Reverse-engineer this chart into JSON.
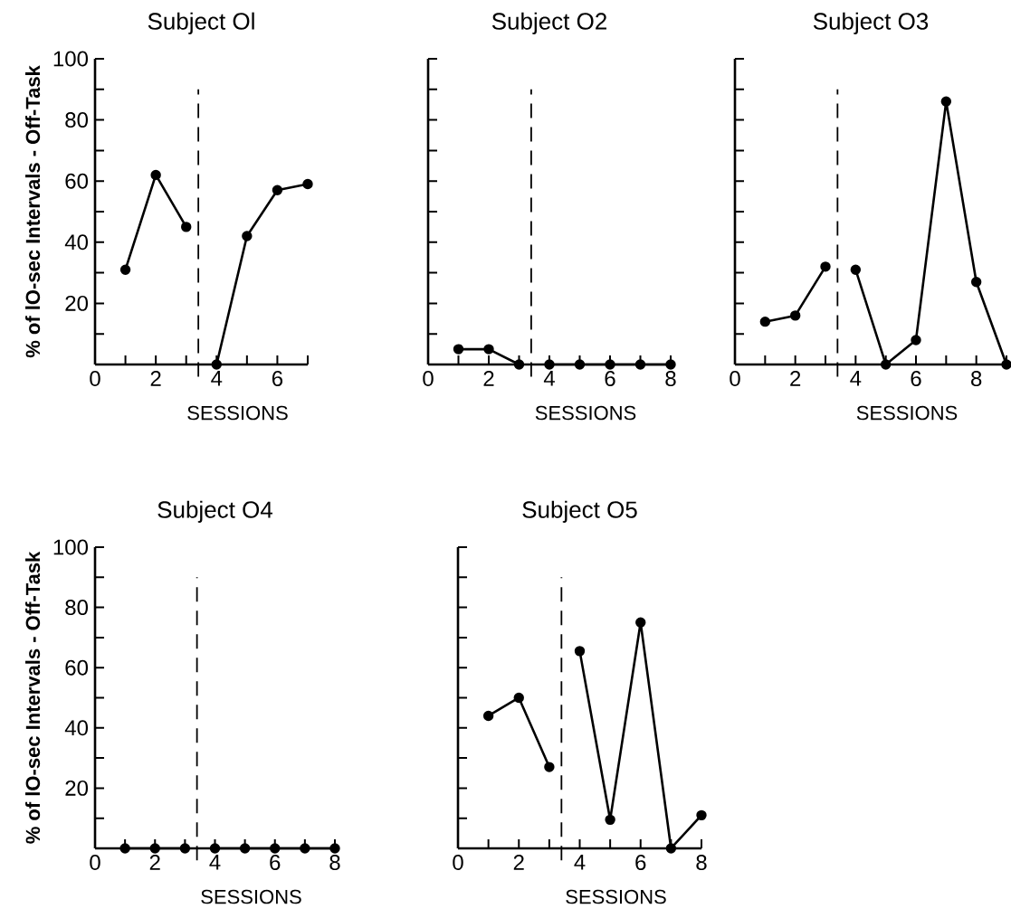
{
  "chart_data": [
    {
      "type": "line",
      "title": "Subject Ol",
      "xlabel": "SESSIONS",
      "ylabel": "% of lO-sec Intervals - Off-Task",
      "marker": "circle",
      "xlim": [
        0,
        7
      ],
      "xticks": [
        0,
        {
          "value": 1,
          "label": null
        },
        2,
        {
          "value": 3,
          "label": null
        },
        4,
        {
          "value": 5,
          "label": null
        },
        6,
        {
          "value": 7,
          "label": null
        }
      ],
      "ylim": [
        0,
        100
      ],
      "yticks": [
        {
          "value": 10,
          "label": null
        },
        20,
        {
          "value": 30,
          "label": null
        },
        40,
        {
          "value": 50,
          "label": null
        },
        60,
        {
          "value": 70,
          "label": null
        },
        80,
        {
          "value": 90,
          "label": null
        },
        100
      ],
      "series": [
        {
          "color": "#000000",
          "x": [
            1,
            2,
            3
          ],
          "values": [
            31,
            62,
            45
          ]
        },
        {
          "color": "#000000",
          "x": [
            4,
            5,
            6,
            7
          ],
          "values": [
            0,
            42,
            57,
            59
          ]
        }
      ],
      "ref_lines": [
        {
          "axis": "x",
          "value": 3.4,
          "color": "#000000",
          "line_style": "dashed"
        }
      ]
    },
    {
      "type": "line",
      "title": "Subject O2",
      "xlabel": "SESSIONS",
      "marker": "circle",
      "tick_labels": "x",
      "xlim": [
        0,
        8
      ],
      "xticks": [
        0,
        {
          "value": 1,
          "label": null
        },
        2,
        {
          "value": 3,
          "label": null
        },
        4,
        {
          "value": 5,
          "label": null
        },
        6,
        {
          "value": 7,
          "label": null
        },
        8
      ],
      "ylim": [
        0,
        100
      ],
      "yticks": [
        {
          "value": 10,
          "label": null
        },
        {
          "value": 20,
          "label": null
        },
        {
          "value": 30,
          "label": null
        },
        {
          "value": 40,
          "label": null
        },
        {
          "value": 50,
          "label": null
        },
        {
          "value": 60,
          "label": null
        },
        {
          "value": 70,
          "label": null
        },
        {
          "value": 80,
          "label": null
        },
        {
          "value": 90,
          "label": null
        },
        {
          "value": 100,
          "label": null
        }
      ],
      "series": [
        {
          "color": "#000000",
          "x": [
            1,
            2,
            3
          ],
          "values": [
            5,
            5,
            0
          ]
        },
        {
          "color": "#000000",
          "x": [
            4,
            5,
            6,
            7,
            8
          ],
          "values": [
            0,
            0,
            0,
            0,
            0
          ]
        }
      ],
      "ref_lines": [
        {
          "axis": "x",
          "value": 3.4,
          "color": "#000000",
          "line_style": "dashed"
        }
      ]
    },
    {
      "type": "line",
      "title": "Subject O3",
      "xlabel": "SESSIONS",
      "marker": "circle",
      "tick_labels": "x",
      "xlim": [
        0,
        9
      ],
      "xticks": [
        0,
        {
          "value": 1,
          "label": null
        },
        2,
        {
          "value": 3,
          "label": null
        },
        4,
        {
          "value": 5,
          "label": null
        },
        6,
        {
          "value": 7,
          "label": null
        },
        8,
        {
          "value": 9,
          "label": null
        }
      ],
      "ylim": [
        0,
        100
      ],
      "yticks": [
        {
          "value": 10,
          "label": null
        },
        {
          "value": 20,
          "label": null
        },
        {
          "value": 30,
          "label": null
        },
        {
          "value": 40,
          "label": null
        },
        {
          "value": 50,
          "label": null
        },
        {
          "value": 60,
          "label": null
        },
        {
          "value": 70,
          "label": null
        },
        {
          "value": 80,
          "label": null
        },
        {
          "value": 90,
          "label": null
        },
        {
          "value": 100,
          "label": null
        }
      ],
      "series": [
        {
          "color": "#000000",
          "x": [
            1,
            2,
            3
          ],
          "values": [
            14,
            16,
            32
          ]
        },
        {
          "color": "#000000",
          "x": [
            4,
            5,
            6,
            7,
            8,
            9
          ],
          "values": [
            31,
            0,
            8,
            86,
            27,
            0
          ]
        }
      ],
      "ref_lines": [
        {
          "axis": "x",
          "value": 3.4,
          "color": "#000000",
          "line_style": "dashed"
        }
      ]
    },
    {
      "type": "line",
      "title": "Subject O4",
      "xlabel": "SESSIONS",
      "ylabel": "% of lO-sec Intervals - Off-Task",
      "marker": "circle",
      "xlim": [
        0,
        8
      ],
      "xticks": [
        0,
        {
          "value": 1,
          "label": null
        },
        2,
        {
          "value": 3,
          "label": null
        },
        4,
        {
          "value": 5,
          "label": null
        },
        6,
        {
          "value": 7,
          "label": null
        },
        8
      ],
      "ylim": [
        0,
        100
      ],
      "yticks": [
        {
          "value": 10,
          "label": null
        },
        20,
        {
          "value": 30,
          "label": null
        },
        40,
        {
          "value": 50,
          "label": null
        },
        60,
        {
          "value": 70,
          "label": null
        },
        80,
        {
          "value": 90,
          "label": null
        },
        100
      ],
      "series": [
        {
          "color": "#000000",
          "x": [
            1,
            2,
            3
          ],
          "values": [
            0,
            0,
            0
          ]
        },
        {
          "color": "#000000",
          "x": [
            4,
            5,
            6,
            7,
            8
          ],
          "values": [
            0,
            0,
            0,
            0,
            0
          ]
        }
      ],
      "ref_lines": [
        {
          "axis": "x",
          "value": 3.4,
          "color": "#000000",
          "line_style": "dashed"
        }
      ]
    },
    {
      "type": "line",
      "title": "Subject O5",
      "xlabel": "SESSIONS",
      "marker": "circle",
      "tick_labels": "x",
      "xlim": [
        0,
        8
      ],
      "xticks": [
        0,
        {
          "value": 1,
          "label": null
        },
        2,
        {
          "value": 3,
          "label": null
        },
        4,
        {
          "value": 5,
          "label": null
        },
        6,
        {
          "value": 7,
          "label": null
        },
        8
      ],
      "ylim": [
        0,
        100
      ],
      "yticks": [
        {
          "value": 10,
          "label": null
        },
        {
          "value": 20,
          "label": null
        },
        {
          "value": 30,
          "label": null
        },
        {
          "value": 40,
          "label": null
        },
        {
          "value": 50,
          "label": null
        },
        {
          "value": 60,
          "label": null
        },
        {
          "value": 70,
          "label": null
        },
        {
          "value": 80,
          "label": null
        },
        {
          "value": 90,
          "label": null
        },
        {
          "value": 100,
          "label": null
        }
      ],
      "series": [
        {
          "color": "#000000",
          "x": [
            1,
            2,
            3
          ],
          "values": [
            44,
            50,
            27
          ]
        },
        {
          "color": "#000000",
          "x": [
            4,
            5,
            6,
            7,
            8
          ],
          "values": [
            65.5,
            9.5,
            75,
            0,
            11
          ]
        }
      ],
      "ref_lines": [
        {
          "axis": "x",
          "value": 3.4,
          "color": "#000000",
          "line_style": "dashed"
        }
      ]
    }
  ]
}
